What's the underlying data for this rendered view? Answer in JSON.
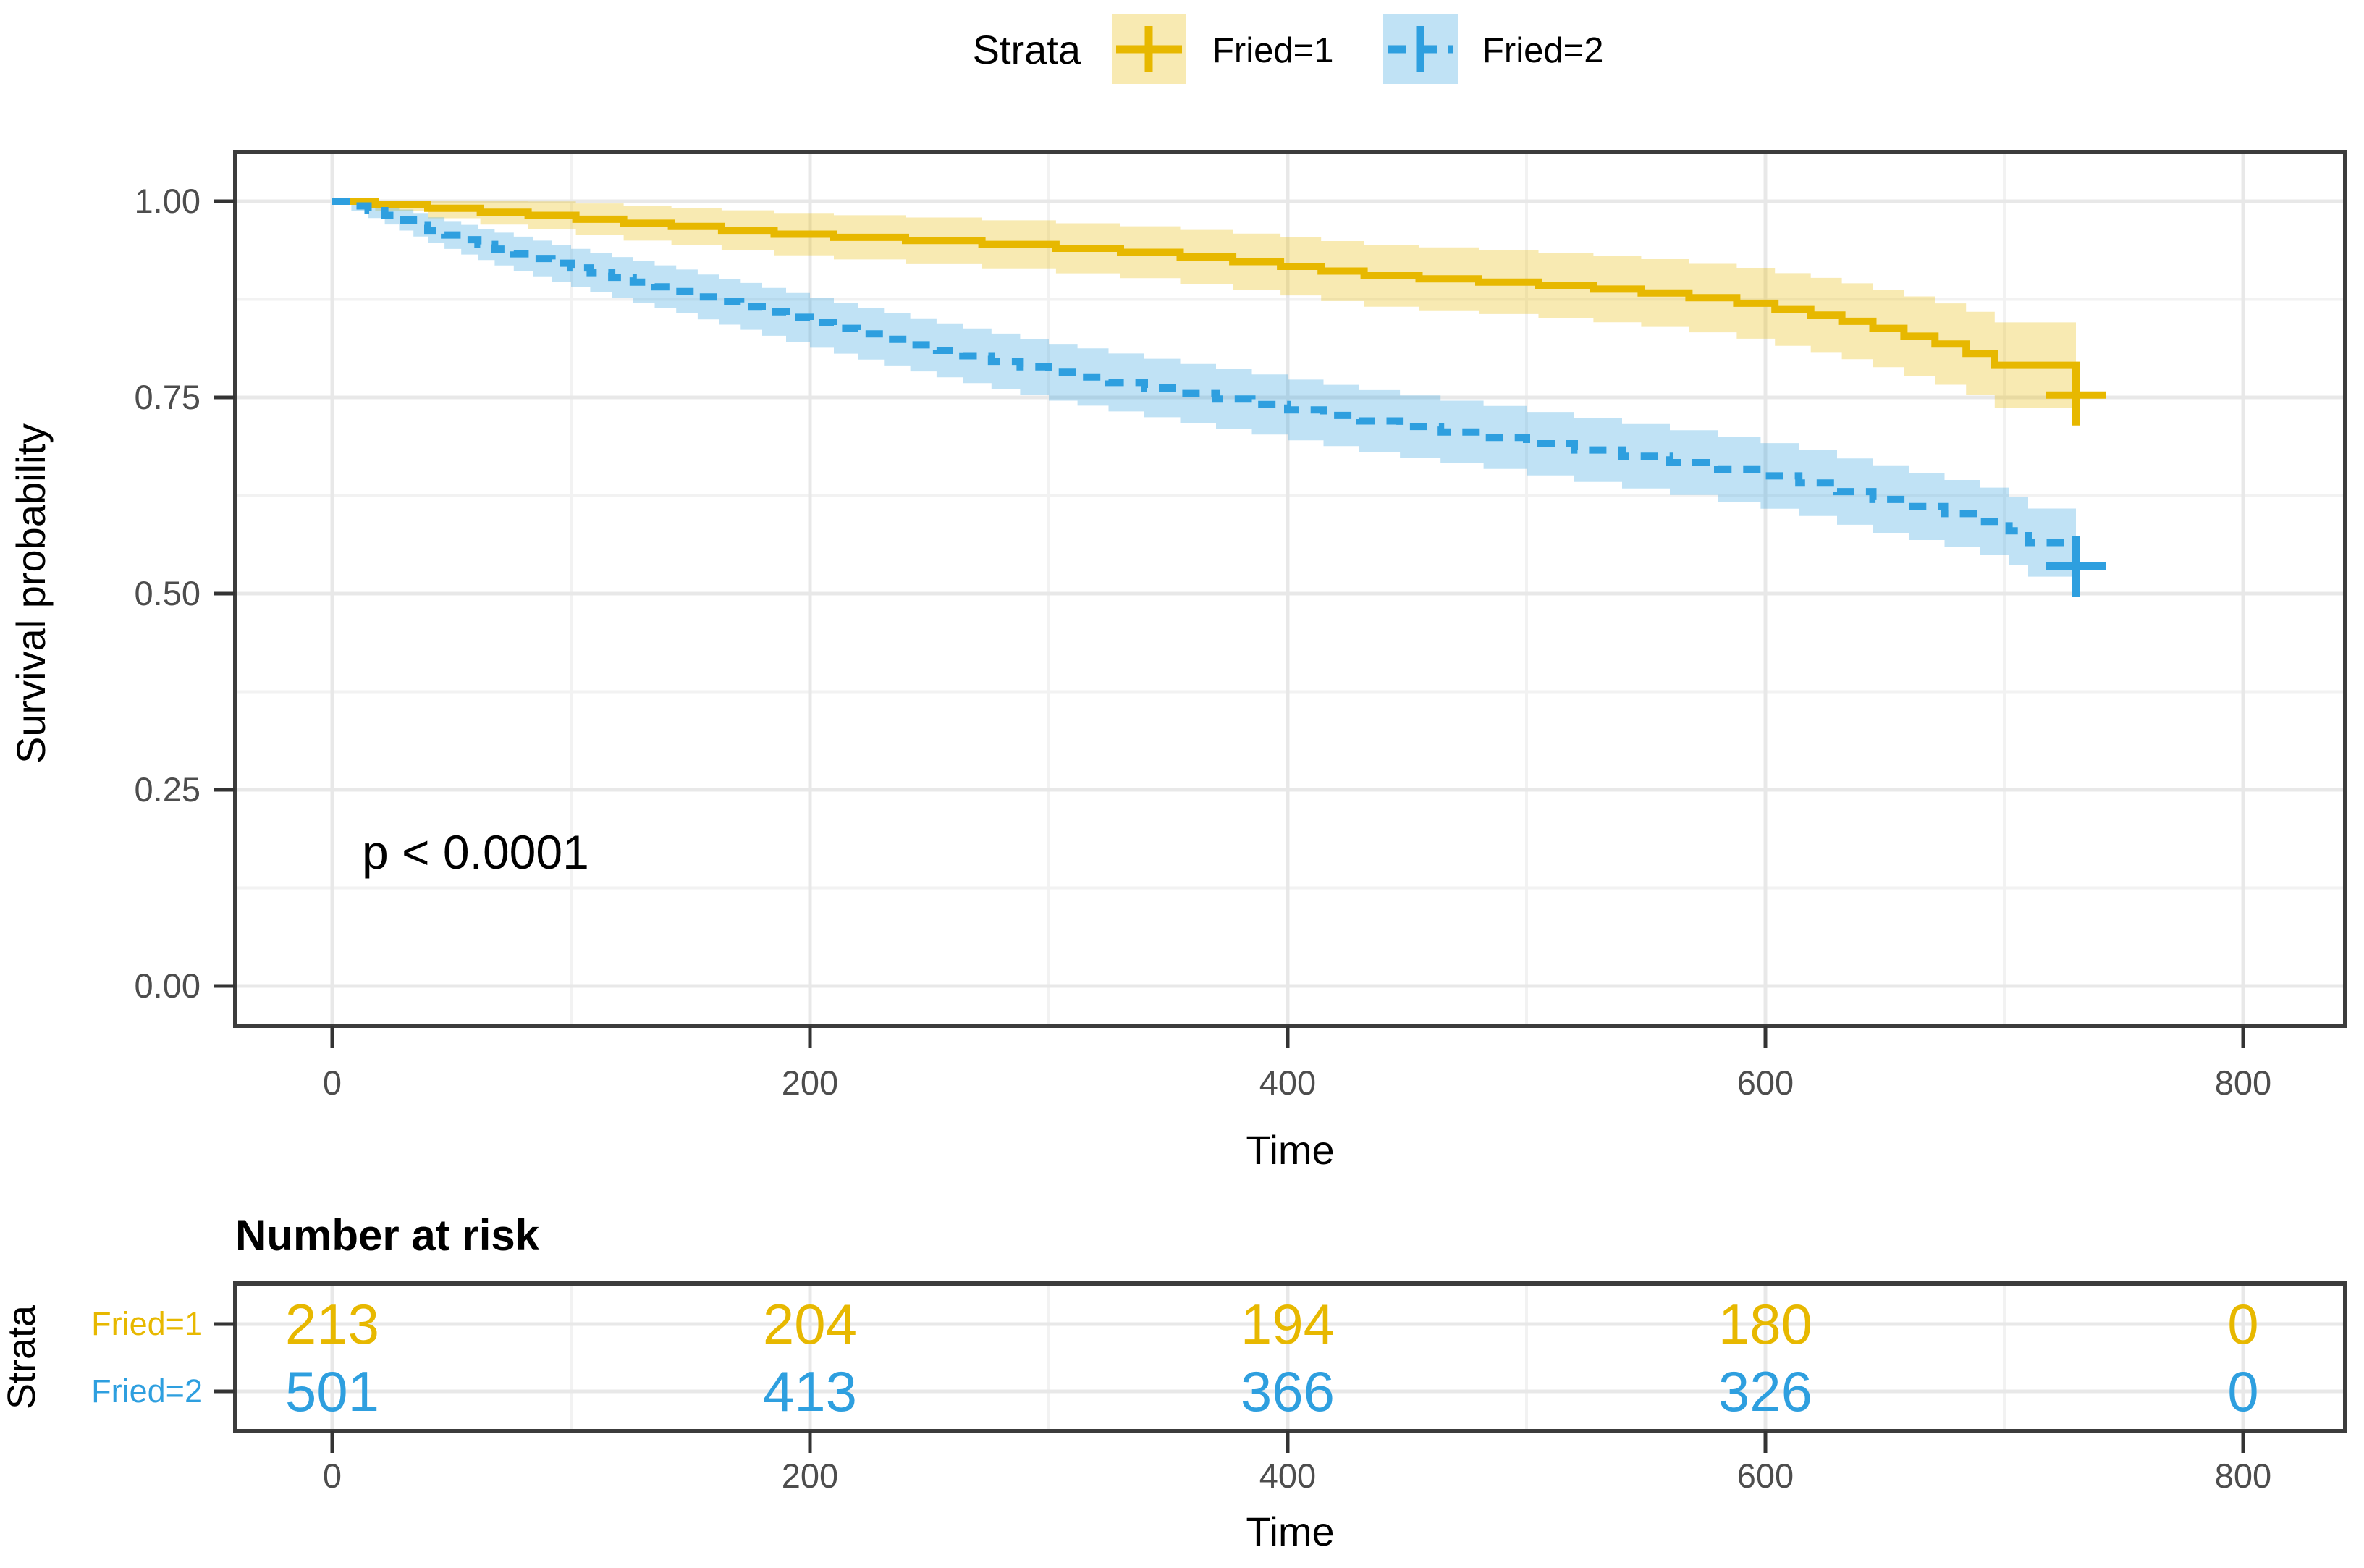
{
  "colors": {
    "stratum1": "#E7B800",
    "stratum2": "#2E9FDF",
    "band_opacity": 0.3,
    "grid_major": "#E8E8E8",
    "grid_minor": "#F2F2F2",
    "panel_border": "#3C3C3C",
    "tick_color": "#333333",
    "tick_label_color": "#4D4D4D",
    "text_color": "#000000"
  },
  "legend": {
    "title": "Strata",
    "items": [
      {
        "label": "Fried=1",
        "color": "#E7B800",
        "linestyle": "solid",
        "key_icon": "plus-censor-icon"
      },
      {
        "label": "Fried=2",
        "color": "#2E9FDF",
        "linestyle": "dashed",
        "key_icon": "plus-censor-icon"
      }
    ]
  },
  "main_plot": {
    "ylabel": "Survival probability",
    "xlabel": "Time",
    "y_tick_labels": [
      "1.00",
      "0.75",
      "0.50",
      "0.25",
      "0.00"
    ],
    "y_tick_values": [
      1.0,
      0.75,
      0.5,
      0.25,
      0.0
    ],
    "y_minor_values": [
      0.875,
      0.625,
      0.375,
      0.125
    ],
    "x_tick_labels": [
      "0",
      "200",
      "400",
      "600",
      "800"
    ],
    "x_tick_values": [
      0,
      200,
      400,
      600,
      800
    ],
    "x_minor_values": [
      100,
      300,
      500,
      700
    ],
    "pvalue": "p < 0.0001"
  },
  "risk_table": {
    "title": "Number at risk",
    "ylabel": "Strata",
    "xlabel": "Time",
    "x_tick_labels": [
      "0",
      "200",
      "400",
      "600",
      "800"
    ],
    "x_tick_values": [
      0,
      200,
      400,
      600,
      800
    ],
    "rows": [
      {
        "label": "Fried=1",
        "color": "#E7B800",
        "values": [
          "213",
          "204",
          "194",
          "180",
          "0"
        ]
      },
      {
        "label": "Fried=2",
        "color": "#2E9FDF",
        "values": [
          "501",
          "413",
          "366",
          "326",
          "0"
        ]
      }
    ]
  },
  "chart_data": {
    "type": "line",
    "subtype": "kaplan-meier-step",
    "title": "",
    "xlabel": "Time",
    "ylabel": "Survival probability",
    "xlim": [
      0,
      800
    ],
    "ylim": [
      0.0,
      1.0
    ],
    "grid": true,
    "legend_position": "top",
    "pvalue": "p < 0.0001",
    "series": [
      {
        "name": "Fried=1",
        "color": "#E7B800",
        "linestyle": "solid",
        "n_start": 213,
        "steps": [
          [
            0,
            1.0
          ],
          [
            18,
            0.996
          ],
          [
            40,
            0.991
          ],
          [
            62,
            0.986
          ],
          [
            82,
            0.982
          ],
          [
            102,
            0.977
          ],
          [
            122,
            0.972
          ],
          [
            142,
            0.968
          ],
          [
            163,
            0.963
          ],
          [
            185,
            0.958
          ],
          [
            210,
            0.954
          ],
          [
            240,
            0.95
          ],
          [
            272,
            0.945
          ],
          [
            303,
            0.94
          ],
          [
            330,
            0.935
          ],
          [
            355,
            0.929
          ],
          [
            377,
            0.923
          ],
          [
            397,
            0.917
          ],
          [
            414,
            0.911
          ],
          [
            432,
            0.905
          ],
          [
            455,
            0.901
          ],
          [
            480,
            0.897
          ],
          [
            505,
            0.893
          ],
          [
            528,
            0.888
          ],
          [
            548,
            0.883
          ],
          [
            568,
            0.877
          ],
          [
            588,
            0.87
          ],
          [
            604,
            0.862
          ],
          [
            619,
            0.855
          ],
          [
            632,
            0.847
          ],
          [
            645,
            0.838
          ],
          [
            658,
            0.828
          ],
          [
            671,
            0.818
          ],
          [
            684,
            0.806
          ],
          [
            696,
            0.791
          ],
          [
            730,
            0.753
          ]
        ],
        "censors": [
          {
            "time": 730,
            "surv": 0.753
          }
        ],
        "number_at_risk": [
          213,
          204,
          194,
          180,
          0
        ]
      },
      {
        "name": "Fried=2",
        "color": "#2E9FDF",
        "linestyle": "dashed",
        "n_start": 501,
        "steps": [
          [
            0,
            1.0
          ],
          [
            8,
            0.994
          ],
          [
            15,
            0.988
          ],
          [
            22,
            0.982
          ],
          [
            28,
            0.976
          ],
          [
            34,
            0.97
          ],
          [
            40,
            0.963
          ],
          [
            47,
            0.957
          ],
          [
            54,
            0.951
          ],
          [
            61,
            0.945
          ],
          [
            68,
            0.939
          ],
          [
            76,
            0.933
          ],
          [
            84,
            0.927
          ],
          [
            92,
            0.921
          ],
          [
            100,
            0.915
          ],
          [
            108,
            0.909
          ],
          [
            117,
            0.903
          ],
          [
            126,
            0.897
          ],
          [
            135,
            0.891
          ],
          [
            144,
            0.885
          ],
          [
            153,
            0.878
          ],
          [
            162,
            0.872
          ],
          [
            171,
            0.866
          ],
          [
            180,
            0.859
          ],
          [
            190,
            0.852
          ],
          [
            200,
            0.845
          ],
          [
            210,
            0.838
          ],
          [
            220,
            0.831
          ],
          [
            231,
            0.824
          ],
          [
            242,
            0.817
          ],
          [
            253,
            0.81
          ],
          [
            264,
            0.803
          ],
          [
            276,
            0.796
          ],
          [
            288,
            0.789
          ],
          [
            300,
            0.782
          ],
          [
            312,
            0.776
          ],
          [
            325,
            0.769
          ],
          [
            340,
            0.762
          ],
          [
            355,
            0.755
          ],
          [
            370,
            0.748
          ],
          [
            385,
            0.741
          ],
          [
            400,
            0.734
          ],
          [
            415,
            0.727
          ],
          [
            430,
            0.72
          ],
          [
            447,
            0.713
          ],
          [
            464,
            0.706
          ],
          [
            482,
            0.699
          ],
          [
            500,
            0.691
          ],
          [
            520,
            0.683
          ],
          [
            540,
            0.675
          ],
          [
            560,
            0.667
          ],
          [
            580,
            0.658
          ],
          [
            598,
            0.65
          ],
          [
            614,
            0.641
          ],
          [
            630,
            0.63
          ],
          [
            645,
            0.62
          ],
          [
            660,
            0.611
          ],
          [
            675,
            0.602
          ],
          [
            690,
            0.592
          ],
          [
            702,
            0.58
          ],
          [
            710,
            0.565
          ],
          [
            730,
            0.535
          ]
        ],
        "censors": [
          {
            "time": 730,
            "surv": 0.535
          }
        ],
        "number_at_risk": [
          501,
          413,
          366,
          326,
          0
        ]
      }
    ],
    "risk_table": {
      "title": "Number at risk",
      "strata_axis_label": "Strata",
      "times": [
        0,
        200,
        400,
        600,
        800
      ]
    }
  }
}
